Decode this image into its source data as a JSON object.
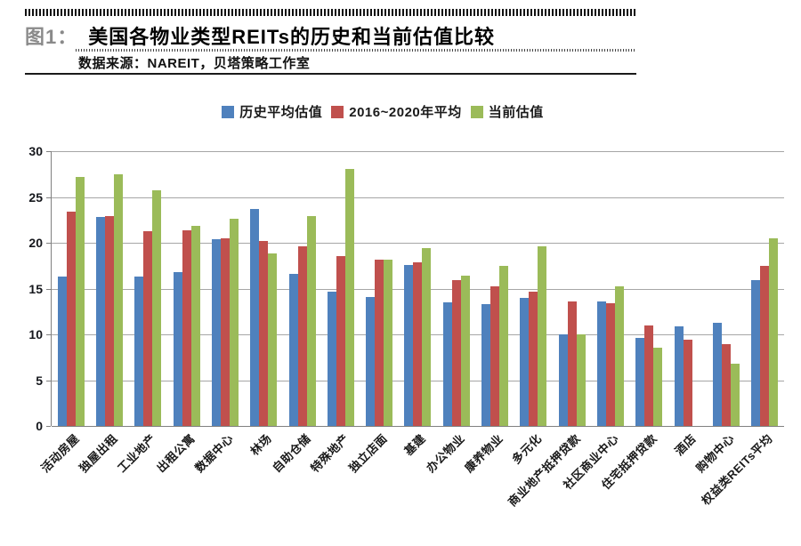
{
  "header": {
    "figure_label": "图1：",
    "title": "美国各物业类型REITs的历史和当前估值比较",
    "source": "数据来源：NAREIT，贝塔策略工作室"
  },
  "chart_data": {
    "type": "bar",
    "title": "美国各物业类型REITs的历史和当前估值比较",
    "xlabel": "",
    "ylabel": "",
    "ylim": [
      0,
      30
    ],
    "yticks": [
      0,
      5,
      10,
      15,
      20,
      25,
      30
    ],
    "grid": true,
    "legend_position": "top",
    "categories": [
      "活动房屋",
      "独屋出租",
      "工业地产",
      "出租公寓",
      "数据中心",
      "林场",
      "自助仓储",
      "特殊地产",
      "独立店面",
      "基建",
      "办公物业",
      "康养物业",
      "多元化",
      "商业地产抵押贷款",
      "社区商业中心",
      "住宅抵押贷款",
      "酒店",
      "购物中心",
      "权益类REITs平均"
    ],
    "series": [
      {
        "name": "历史平均估值",
        "color": "#4F81BD",
        "values": [
          16.3,
          22.8,
          16.3,
          16.8,
          20.4,
          23.7,
          16.6,
          14.7,
          14.1,
          17.6,
          13.5,
          13.3,
          14.0,
          10.0,
          13.6,
          9.6,
          10.9,
          11.3,
          15.9
        ]
      },
      {
        "name": "2016~2020年平均",
        "color": "#C0504D",
        "values": [
          23.4,
          22.9,
          21.3,
          21.4,
          20.5,
          20.2,
          19.6,
          18.5,
          18.2,
          17.9,
          15.9,
          15.2,
          14.7,
          13.6,
          13.4,
          11.0,
          9.4,
          8.9,
          17.5
        ]
      },
      {
        "name": "当前估值",
        "color": "#9BBB59",
        "values": [
          27.2,
          27.5,
          25.7,
          21.8,
          22.6,
          18.8,
          22.9,
          28.1,
          18.2,
          19.4,
          16.4,
          17.5,
          19.6,
          10.0,
          15.2,
          8.5,
          null,
          6.8,
          20.5
        ]
      }
    ],
    "colors": {
      "axis": "#808080",
      "gridline": "#a6a6a6"
    }
  }
}
